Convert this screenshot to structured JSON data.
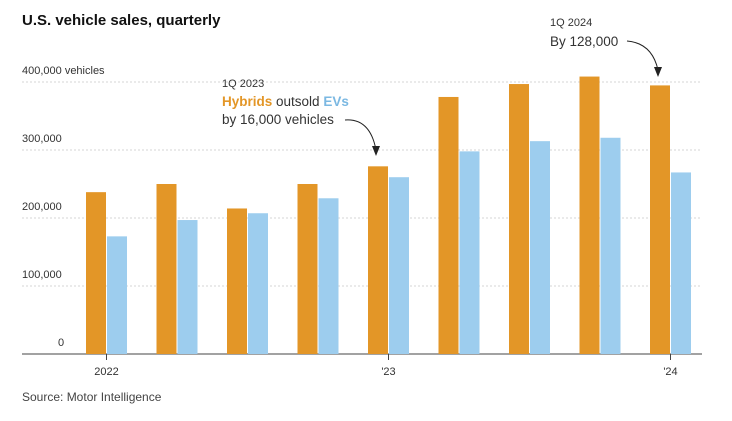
{
  "chart_data": {
    "type": "bar",
    "title": "U.S. vehicle sales, quarterly",
    "source": "Source: Motor Intelligence",
    "colors": {
      "hybrids": "#e39627",
      "evs": "#9dcdee"
    },
    "ylim": [
      0,
      450000
    ],
    "yticks": [
      {
        "value": 0,
        "label": "0"
      },
      {
        "value": 100000,
        "label": "100,000"
      },
      {
        "value": 200000,
        "label": "200,000"
      },
      {
        "value": 300000,
        "label": "300,000"
      },
      {
        "value": 400000,
        "label": "400,000 vehicles"
      }
    ],
    "xlabels": [
      {
        "index": 0,
        "label": "2022"
      },
      {
        "index": 4,
        "label": "'23"
      },
      {
        "index": 8,
        "label": "'24"
      }
    ],
    "series": [
      {
        "key": "hybrids",
        "values": [
          238000,
          250000,
          214000,
          250000,
          276000,
          378000,
          397000,
          408000,
          395000
        ]
      },
      {
        "key": "evs",
        "values": [
          173000,
          197000,
          207000,
          229000,
          260000,
          298000,
          313000,
          318000,
          267000
        ]
      }
    ],
    "annotations": {
      "a1": {
        "quarter": "1Q 2023",
        "hybrids": "Hybrids",
        "mid": " outsold ",
        "evs": "EVs",
        "line2": "by 16,000 vehicles"
      },
      "a2": {
        "quarter": "1Q 2024",
        "line2": "By 128,000"
      }
    }
  }
}
